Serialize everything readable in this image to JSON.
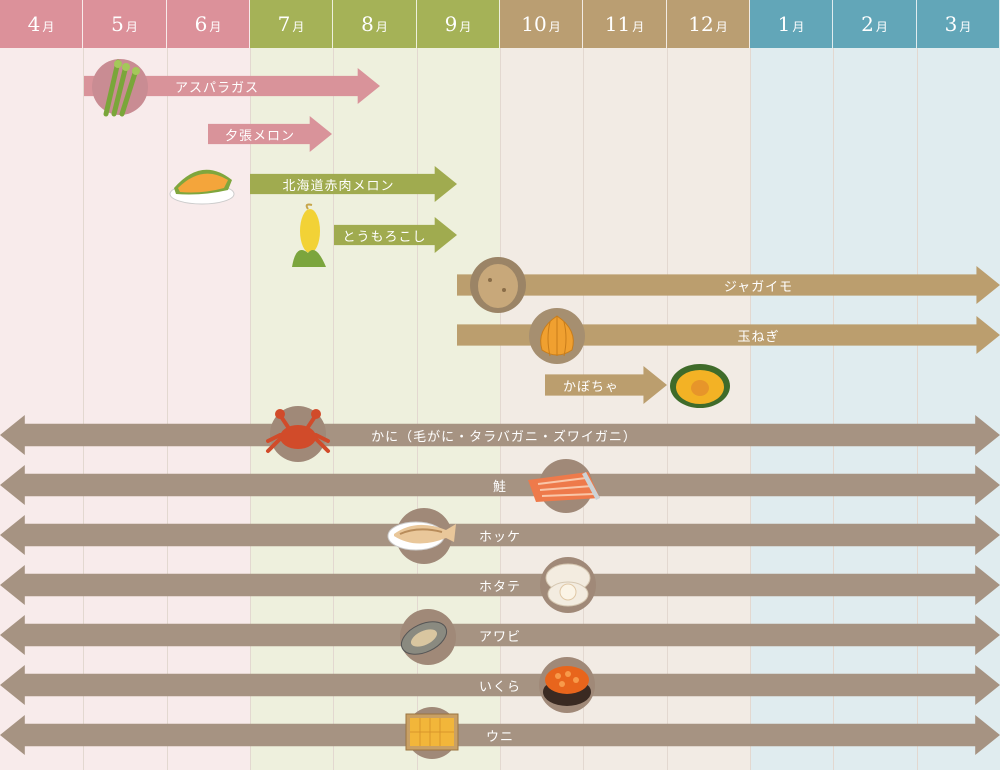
{
  "months": [
    {
      "label": "4",
      "unit": "月"
    },
    {
      "label": "5",
      "unit": "月"
    },
    {
      "label": "6",
      "unit": "月"
    },
    {
      "label": "7",
      "unit": "月"
    },
    {
      "label": "8",
      "unit": "月"
    },
    {
      "label": "9",
      "unit": "月"
    },
    {
      "label": "10",
      "unit": "月"
    },
    {
      "label": "11",
      "unit": "月"
    },
    {
      "label": "12",
      "unit": "月"
    },
    {
      "label": "1",
      "unit": "月"
    },
    {
      "label": "2",
      "unit": "月"
    },
    {
      "label": "3",
      "unit": "月"
    }
  ],
  "colors": {
    "spring_header": "#dc919a",
    "spring_bg": "#f8ebeb",
    "summer_header": "#a5b257",
    "summer_bg": "#eef0dd",
    "autumn_header": "#ba9e72",
    "autumn_bg": "#f2ebe4",
    "winter_header": "#62a6b8",
    "winter_bg": "#e0ecef",
    "pink_arrow": "#d9939a",
    "green_arrow": "#a0ab4f",
    "tan_arrow": "#bb9e6e",
    "grey_arrow": "#a69382"
  },
  "items": {
    "asparagus": "アスパラガス",
    "yubari_melon": "夕張メロン",
    "hokkaido_red_melon": "北海道赤肉メロン",
    "corn": "とうもろこし",
    "potato": "ジャガイモ",
    "onion": "玉ねぎ",
    "pumpkin": "かぼちゃ",
    "crab": "かに（毛がに・タラバガニ・ズワイガニ）",
    "salmon": "鮭",
    "hokke": "ホッケ",
    "scallop": "ホタテ",
    "abalone": "アワビ",
    "ikura": "いくら",
    "uni": "ウニ"
  }
}
